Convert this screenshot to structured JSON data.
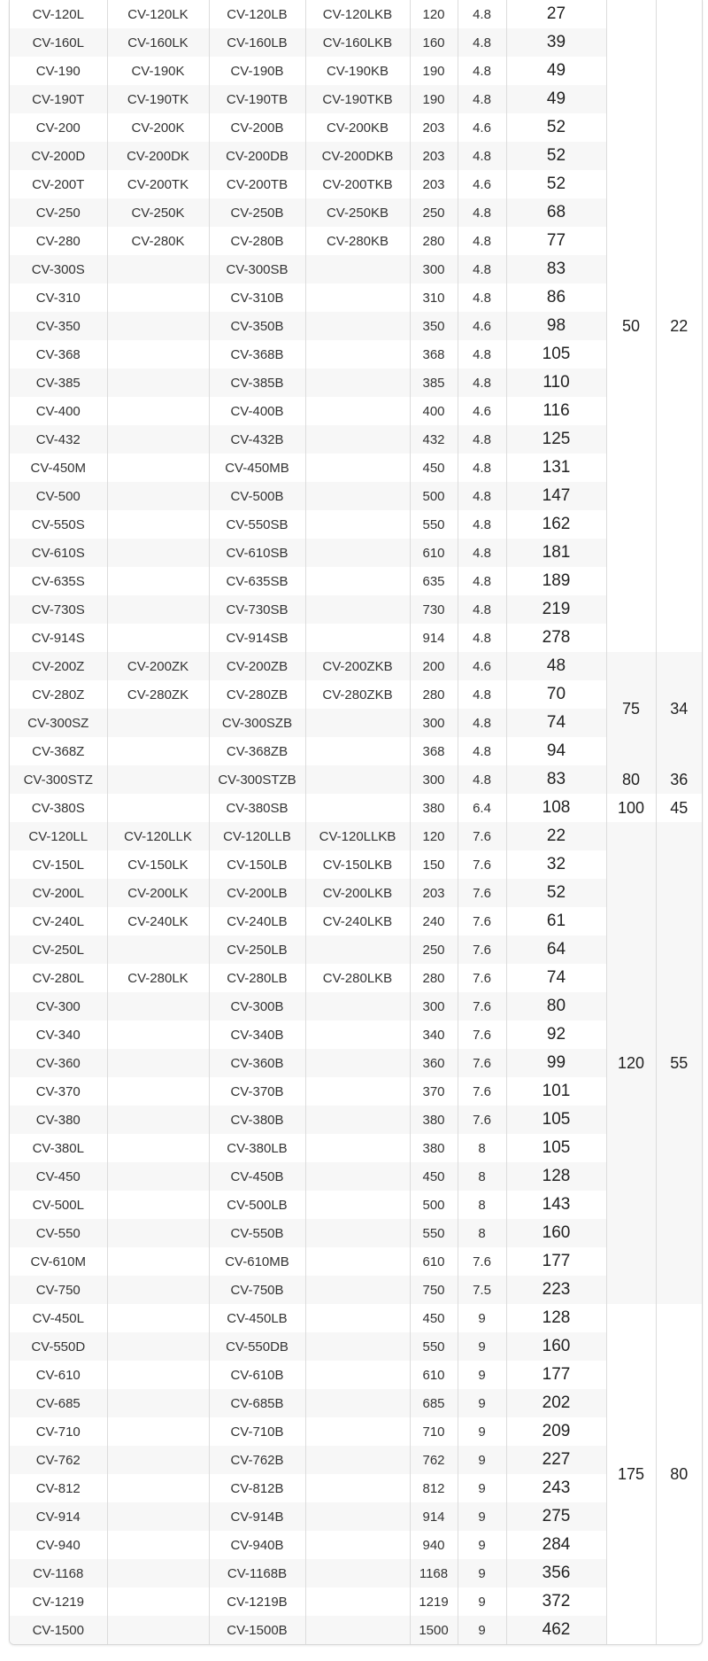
{
  "table": {
    "rows": [
      [
        "CV-120L",
        "CV-120LK",
        "CV-120LB",
        "CV-120LKB",
        "120",
        "4.8",
        "27"
      ],
      [
        "CV-160L",
        "CV-160LK",
        "CV-160LB",
        "CV-160LKB",
        "160",
        "4.8",
        "39"
      ],
      [
        "CV-190",
        "CV-190K",
        "CV-190B",
        "CV-190KB",
        "190",
        "4.8",
        "49"
      ],
      [
        "CV-190T",
        "CV-190TK",
        "CV-190TB",
        "CV-190TKB",
        "190",
        "4.8",
        "49"
      ],
      [
        "CV-200",
        "CV-200K",
        "CV-200B",
        "CV-200KB",
        "203",
        "4.6",
        "52"
      ],
      [
        "CV-200D",
        "CV-200DK",
        "CV-200DB",
        "CV-200DKB",
        "203",
        "4.8",
        "52"
      ],
      [
        "CV-200T",
        "CV-200TK",
        "CV-200TB",
        "CV-200TKB",
        "203",
        "4.6",
        "52"
      ],
      [
        "CV-250",
        "CV-250K",
        "CV-250B",
        "CV-250KB",
        "250",
        "4.8",
        "68"
      ],
      [
        "CV-280",
        "CV-280K",
        "CV-280B",
        "CV-280KB",
        "280",
        "4.8",
        "77"
      ],
      [
        "CV-300S",
        "",
        "CV-300SB",
        "",
        "300",
        "4.8",
        "83"
      ],
      [
        "CV-310",
        "",
        "CV-310B",
        "",
        "310",
        "4.8",
        "86"
      ],
      [
        "CV-350",
        "",
        "CV-350B",
        "",
        "350",
        "4.6",
        "98"
      ],
      [
        "CV-368",
        "",
        "CV-368B",
        "",
        "368",
        "4.8",
        "105"
      ],
      [
        "CV-385",
        "",
        "CV-385B",
        "",
        "385",
        "4.8",
        "110"
      ],
      [
        "CV-400",
        "",
        "CV-400B",
        "",
        "400",
        "4.6",
        "116"
      ],
      [
        "CV-432",
        "",
        "CV-432B",
        "",
        "432",
        "4.8",
        "125"
      ],
      [
        "CV-450M",
        "",
        "CV-450MB",
        "",
        "450",
        "4.8",
        "131"
      ],
      [
        "CV-500",
        "",
        "CV-500B",
        "",
        "500",
        "4.8",
        "147"
      ],
      [
        "CV-550S",
        "",
        "CV-550SB",
        "",
        "550",
        "4.8",
        "162"
      ],
      [
        "CV-610S",
        "",
        "CV-610SB",
        "",
        "610",
        "4.8",
        "181"
      ],
      [
        "CV-635S",
        "",
        "CV-635SB",
        "",
        "635",
        "4.8",
        "189"
      ],
      [
        "CV-730S",
        "",
        "CV-730SB",
        "",
        "730",
        "4.8",
        "219"
      ],
      [
        "CV-914S",
        "",
        "CV-914SB",
        "",
        "914",
        "4.8",
        "278"
      ],
      [
        "CV-200Z",
        "CV-200ZK",
        "CV-200ZB",
        "CV-200ZKB",
        "200",
        "4.6",
        "48"
      ],
      [
        "CV-280Z",
        "CV-280ZK",
        "CV-280ZB",
        "CV-280ZKB",
        "280",
        "4.8",
        "70"
      ],
      [
        "CV-300SZ",
        "",
        "CV-300SZB",
        "",
        "300",
        "4.8",
        "74"
      ],
      [
        "CV-368Z",
        "",
        "CV-368ZB",
        "",
        "368",
        "4.8",
        "94"
      ],
      [
        "CV-300STZ",
        "",
        "CV-300STZB",
        "",
        "300",
        "4.8",
        "83"
      ],
      [
        "CV-380S",
        "",
        "CV-380SB",
        "",
        "380",
        "6.4",
        "108"
      ],
      [
        "CV-120LL",
        "CV-120LLK",
        "CV-120LLB",
        "CV-120LLKB",
        "120",
        "7.6",
        "22"
      ],
      [
        "CV-150L",
        "CV-150LK",
        "CV-150LB",
        "CV-150LKB",
        "150",
        "7.6",
        "32"
      ],
      [
        "CV-200L",
        "CV-200LK",
        "CV-200LB",
        "CV-200LKB",
        "203",
        "7.6",
        "52"
      ],
      [
        "CV-240L",
        "CV-240LK",
        "CV-240LB",
        "CV-240LKB",
        "240",
        "7.6",
        "61"
      ],
      [
        "CV-250L",
        "",
        "CV-250LB",
        "",
        "250",
        "7.6",
        "64"
      ],
      [
        "CV-280L",
        "CV-280LK",
        "CV-280LB",
        "CV-280LKB",
        "280",
        "7.6",
        "74"
      ],
      [
        "CV-300",
        "",
        "CV-300B",
        "",
        "300",
        "7.6",
        "80"
      ],
      [
        "CV-340",
        "",
        "CV-340B",
        "",
        "340",
        "7.6",
        "92"
      ],
      [
        "CV-360",
        "",
        "CV-360B",
        "",
        "360",
        "7.6",
        "99"
      ],
      [
        "CV-370",
        "",
        "CV-370B",
        "",
        "370",
        "7.6",
        "101"
      ],
      [
        "CV-380",
        "",
        "CV-380B",
        "",
        "380",
        "7.6",
        "105"
      ],
      [
        "CV-380L",
        "",
        "CV-380LB",
        "",
        "380",
        "8",
        "105"
      ],
      [
        "CV-450",
        "",
        "CV-450B",
        "",
        "450",
        "8",
        "128"
      ],
      [
        "CV-500L",
        "",
        "CV-500LB",
        "",
        "500",
        "8",
        "143"
      ],
      [
        "CV-550",
        "",
        "CV-550B",
        "",
        "550",
        "8",
        "160"
      ],
      [
        "CV-610M",
        "",
        "CV-610MB",
        "",
        "610",
        "7.6",
        "177"
      ],
      [
        "CV-750",
        "",
        "CV-750B",
        "",
        "750",
        "7.5",
        "223"
      ],
      [
        "CV-450L",
        "",
        "CV-450LB",
        "",
        "450",
        "9",
        "128"
      ],
      [
        "CV-550D",
        "",
        "CV-550DB",
        "",
        "550",
        "9",
        "160"
      ],
      [
        "CV-610",
        "",
        "CV-610B",
        "",
        "610",
        "9",
        "177"
      ],
      [
        "CV-685",
        "",
        "CV-685B",
        "",
        "685",
        "9",
        "202"
      ],
      [
        "CV-710",
        "",
        "CV-710B",
        "",
        "710",
        "9",
        "209"
      ],
      [
        "CV-762",
        "",
        "CV-762B",
        "",
        "762",
        "9",
        "227"
      ],
      [
        "CV-812",
        "",
        "CV-812B",
        "",
        "812",
        "9",
        "243"
      ],
      [
        "CV-914",
        "",
        "CV-914B",
        "",
        "914",
        "9",
        "275"
      ],
      [
        "CV-940",
        "",
        "CV-940B",
        "",
        "940",
        "9",
        "284"
      ],
      [
        "CV-1168",
        "",
        "CV-1168B",
        "",
        "1168",
        "9",
        "356"
      ],
      [
        "CV-1219",
        "",
        "CV-1219B",
        "",
        "1219",
        "9",
        "372"
      ],
      [
        "CV-1500",
        "",
        "CV-1500B",
        "",
        "1500",
        "9",
        "462"
      ]
    ],
    "groups": [
      {
        "rows": 23,
        "a": "50",
        "b": "22"
      },
      {
        "rows": 4,
        "a": "75",
        "b": "34"
      },
      {
        "rows": 1,
        "a": "80",
        "b": "36"
      },
      {
        "rows": 1,
        "a": "100",
        "b": "45"
      },
      {
        "rows": 17,
        "a": "120",
        "b": "55"
      },
      {
        "rows": 12,
        "a": "175",
        "b": "80"
      }
    ]
  }
}
